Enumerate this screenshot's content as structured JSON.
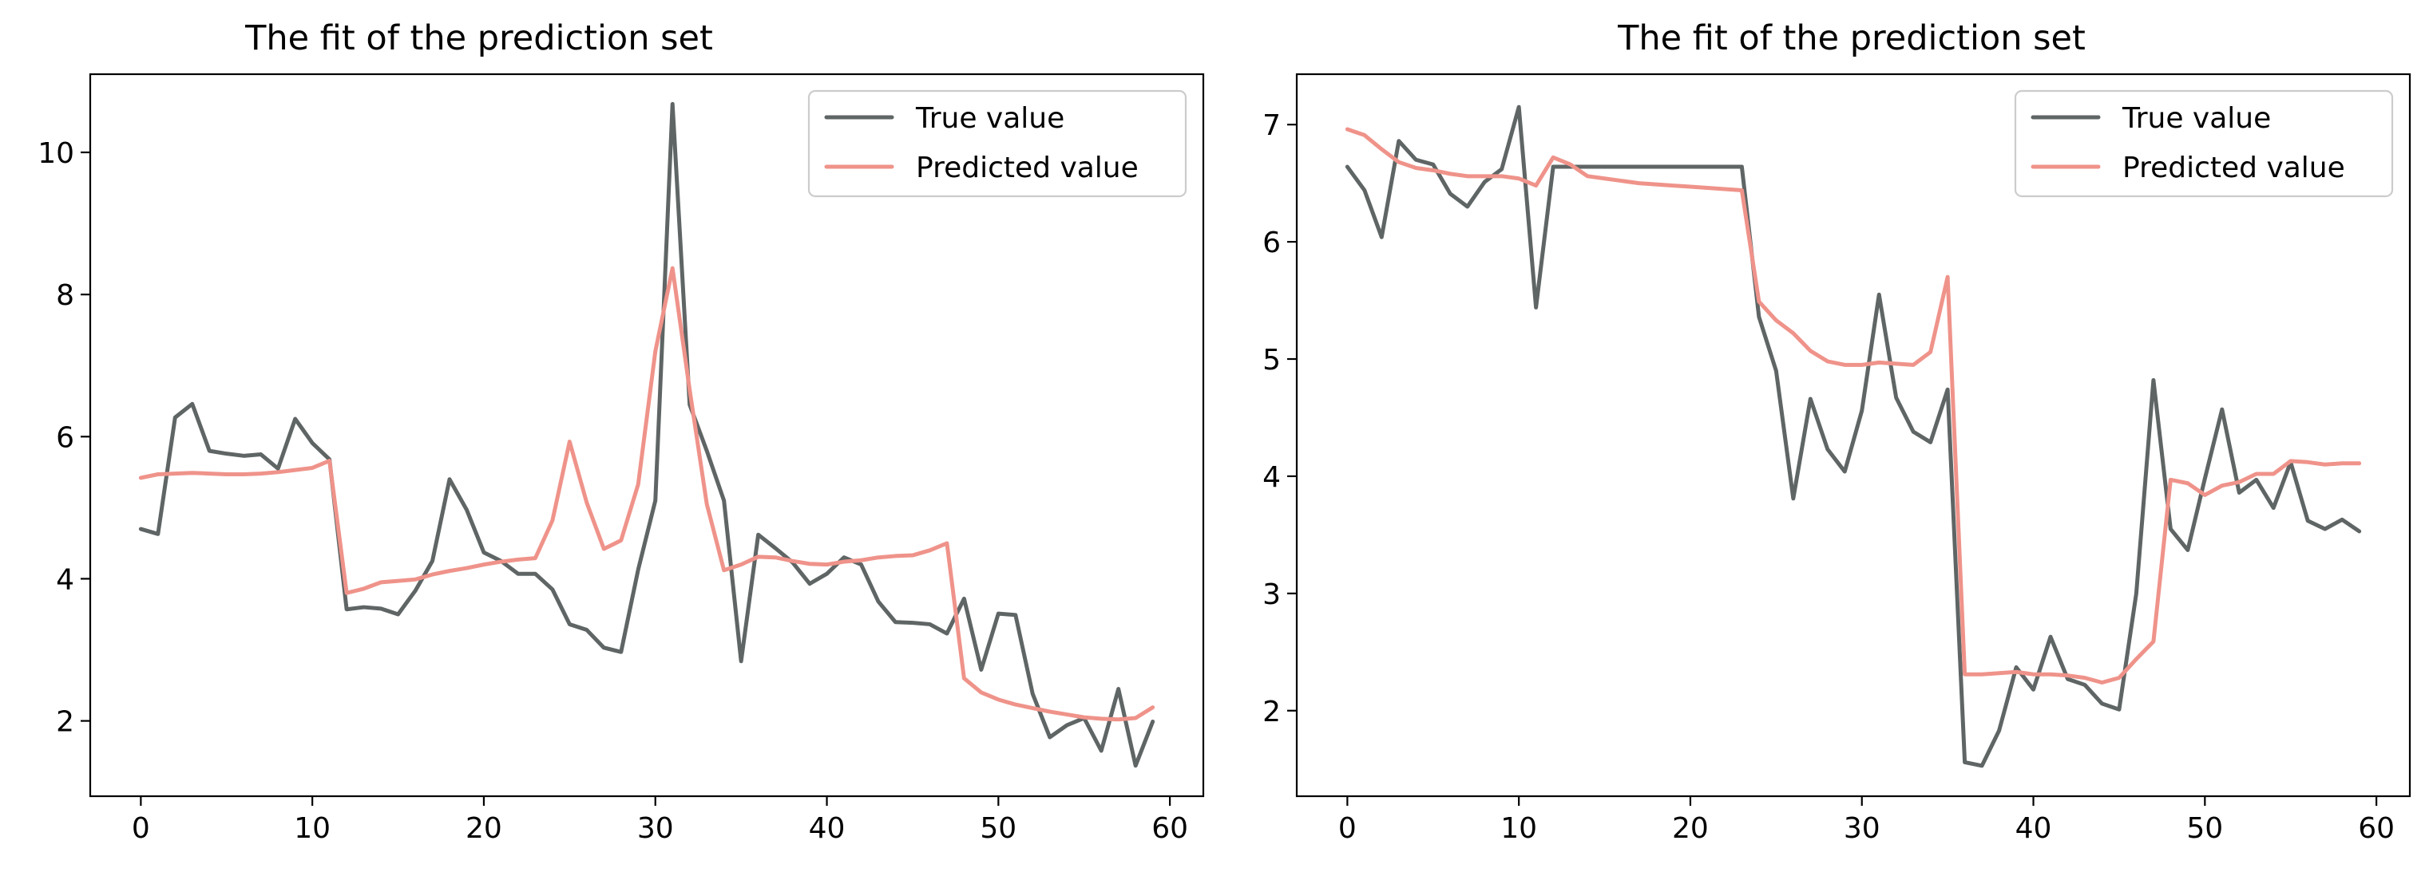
{
  "chart_data": [
    {
      "type": "line",
      "title": "The fit of the prediction set",
      "xlim": [
        -2.95,
        61.95
      ],
      "ylim": [
        0.94,
        11.1
      ],
      "xticks": [
        0,
        10,
        20,
        30,
        40,
        50,
        60
      ],
      "yticks": [
        2,
        4,
        6,
        8,
        10
      ],
      "legend_position": "top-right",
      "x": [
        0,
        1,
        2,
        3,
        4,
        5,
        6,
        7,
        8,
        9,
        10,
        11,
        12,
        13,
        14,
        15,
        16,
        17,
        18,
        19,
        20,
        21,
        22,
        23,
        24,
        25,
        26,
        27,
        28,
        29,
        30,
        31,
        32,
        33,
        34,
        35,
        36,
        37,
        38,
        39,
        40,
        41,
        42,
        43,
        44,
        45,
        46,
        47,
        48,
        49,
        50,
        51,
        52,
        53,
        54,
        55,
        56,
        57,
        58,
        59
      ],
      "series": [
        {
          "name": "True value",
          "color": "#5f6565",
          "values": [
            4.7,
            4.63,
            6.27,
            6.46,
            5.8,
            5.76,
            5.73,
            5.75,
            5.55,
            6.25,
            5.91,
            5.68,
            3.57,
            3.6,
            3.58,
            3.5,
            3.83,
            4.25,
            5.4,
            4.97,
            4.37,
            4.25,
            4.07,
            4.07,
            3.85,
            3.36,
            3.28,
            3.03,
            2.97,
            4.13,
            5.1,
            10.68,
            6.45,
            5.8,
            5.1,
            2.84,
            4.62,
            4.43,
            4.23,
            3.93,
            4.07,
            4.3,
            4.2,
            3.68,
            3.39,
            3.38,
            3.36,
            3.23,
            3.72,
            2.72,
            3.51,
            3.49,
            2.38,
            1.77,
            1.94,
            2.04,
            1.58,
            2.45,
            1.37,
            1.99
          ]
        },
        {
          "name": "Predicted value",
          "color": "#ef938a",
          "values": [
            5.42,
            5.47,
            5.48,
            5.49,
            5.48,
            5.47,
            5.47,
            5.48,
            5.5,
            5.53,
            5.56,
            5.66,
            3.8,
            3.86,
            3.95,
            3.97,
            3.99,
            4.06,
            4.11,
            4.15,
            4.2,
            4.24,
            4.27,
            4.29,
            4.82,
            5.93,
            5.07,
            4.42,
            4.54,
            5.33,
            7.2,
            8.37,
            6.66,
            5.05,
            4.12,
            4.2,
            4.31,
            4.3,
            4.25,
            4.21,
            4.2,
            4.24,
            4.26,
            4.3,
            4.32,
            4.33,
            4.4,
            4.5,
            2.6,
            2.4,
            2.3,
            2.23,
            2.18,
            2.13,
            2.09,
            2.05,
            2.03,
            2.02,
            2.04,
            2.19
          ]
        }
      ]
    },
    {
      "type": "line",
      "title": "The fit of the prediction set",
      "xlim": [
        -2.95,
        61.95
      ],
      "ylim": [
        1.27,
        7.43
      ],
      "xticks": [
        0,
        10,
        20,
        30,
        40,
        50,
        60
      ],
      "yticks": [
        2,
        3,
        4,
        5,
        6,
        7
      ],
      "legend_position": "top-right",
      "x": [
        0,
        1,
        2,
        3,
        4,
        5,
        6,
        7,
        8,
        9,
        10,
        11,
        12,
        13,
        14,
        15,
        16,
        17,
        18,
        19,
        20,
        21,
        22,
        23,
        24,
        25,
        26,
        27,
        28,
        29,
        30,
        31,
        32,
        33,
        34,
        35,
        36,
        37,
        38,
        39,
        40,
        41,
        42,
        43,
        44,
        45,
        46,
        47,
        48,
        49,
        50,
        51,
        52,
        53,
        54,
        55,
        56,
        57,
        58,
        59
      ],
      "series": [
        {
          "name": "True value",
          "color": "#5f6565",
          "values": [
            6.64,
            6.44,
            6.04,
            6.86,
            6.7,
            6.66,
            6.41,
            6.3,
            6.51,
            6.62,
            7.15,
            5.44,
            6.64,
            6.64,
            6.64,
            6.64,
            6.64,
            6.64,
            6.64,
            6.64,
            6.64,
            6.64,
            6.64,
            6.64,
            5.36,
            4.9,
            3.81,
            4.66,
            4.23,
            4.04,
            4.56,
            5.55,
            4.67,
            4.38,
            4.29,
            4.74,
            1.56,
            1.53,
            1.83,
            2.37,
            2.18,
            2.63,
            2.27,
            2.22,
            2.06,
            2.01,
            3.0,
            4.82,
            3.55,
            3.37,
            3.98,
            4.57,
            3.86,
            3.97,
            3.73,
            4.12,
            3.62,
            3.55,
            3.63,
            3.53
          ]
        },
        {
          "name": "Predicted value",
          "color": "#ef938a",
          "values": [
            6.96,
            6.91,
            6.79,
            6.68,
            6.63,
            6.61,
            6.58,
            6.56,
            6.56,
            6.56,
            6.54,
            6.48,
            6.72,
            6.66,
            6.56,
            6.54,
            6.52,
            6.5,
            6.49,
            6.48,
            6.47,
            6.46,
            6.45,
            6.44,
            5.49,
            5.33,
            5.22,
            5.07,
            4.98,
            4.95,
            4.95,
            4.97,
            4.96,
            4.95,
            5.06,
            5.7,
            2.31,
            2.31,
            2.32,
            2.33,
            2.31,
            2.31,
            2.3,
            2.28,
            2.24,
            2.28,
            2.44,
            2.59,
            3.97,
            3.94,
            3.84,
            3.92,
            3.95,
            4.02,
            4.02,
            4.13,
            4.12,
            4.1,
            4.11,
            4.11
          ]
        }
      ]
    }
  ]
}
